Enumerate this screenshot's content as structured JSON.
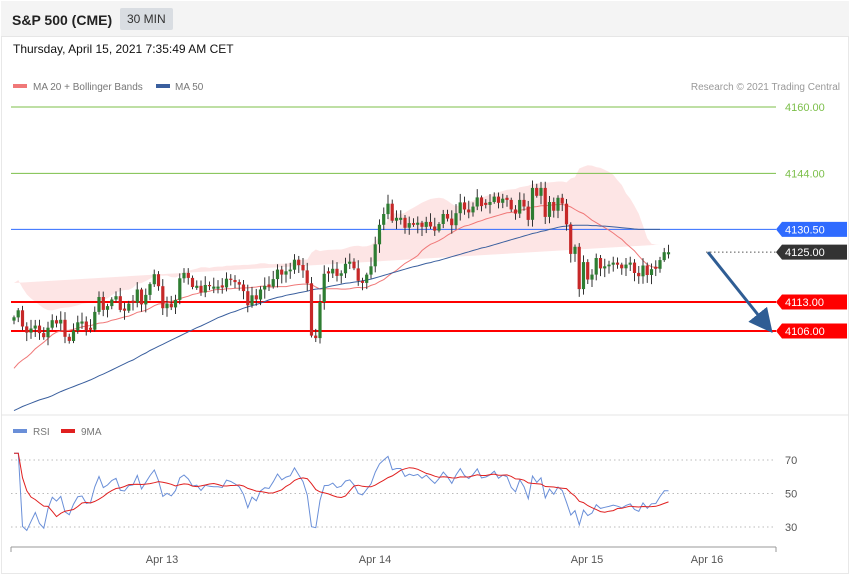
{
  "header": {
    "title": "S&P 500 (CME)",
    "timeframe": "30 MIN",
    "timestamp": "Thursday, April 15, 2021 7:35:49 AM CET"
  },
  "legend": {
    "ma20_label": "MA 20 + Bollinger Bands",
    "ma50_label": "MA 50",
    "credit": "Research © 2021 Trading Central",
    "rsi_label": "RSI",
    "ma9_label": "9MA"
  },
  "colors": {
    "up_candle": "#2e7d32",
    "down_candle": "#c62828",
    "bollinger_fill": "#fde0e0",
    "ma20": "#f07878",
    "ma50": "#3a5f9e",
    "green_level": "#7cbf4a",
    "support": "#ff0000",
    "current": "#333333",
    "pivot": "#2f6bff",
    "forecast_arrow": "#2f5d94",
    "rsi": "#6a8fd8",
    "rsi_ma": "#e02020"
  },
  "chart_data": [
    {
      "type": "candlestick",
      "title": "S&P 500 (CME)",
      "ylim": [
        4085,
        4164
      ],
      "x_ticks": [
        "Apr 13",
        "Apr 14",
        "Apr 15",
        "Apr 16"
      ],
      "levels": [
        {
          "value": 4160.0,
          "label": "4160.00",
          "kind": "resistance-2"
        },
        {
          "value": 4144.0,
          "label": "4144.00",
          "kind": "resistance-1"
        },
        {
          "value": 4130.5,
          "label": "4130.50",
          "kind": "pivot"
        },
        {
          "value": 4125.0,
          "label": "4125.00",
          "kind": "last-price"
        },
        {
          "value": 4113.0,
          "label": "4113.00",
          "kind": "support-1"
        },
        {
          "value": 4106.0,
          "label": "4106.00",
          "kind": "support-2"
        }
      ],
      "forecast_arrow": {
        "from": 4125.0,
        "to": 4106.0
      },
      "close": [
        4109.3,
        4111.0,
        4107.1,
        4105.6,
        4106.6,
        4107.3,
        4105.5,
        4104.5,
        4106.8,
        4108.6,
        4107.8,
        4108.7,
        4104.6,
        4103.6,
        4106.1,
        4108.1,
        4108.3,
        4106.1,
        4106.3,
        4110.6,
        4114.2,
        4111.1,
        4112.0,
        4113.6,
        4114.4,
        4111.1,
        4110.9,
        4112.6,
        4112.8,
        4116.0,
        4112.4,
        4114.7,
        4117.3,
        4119.7,
        4116.8,
        4111.5,
        4112.6,
        4111.7,
        4113.5,
        4118.7,
        4120.0,
        4118.8,
        4116.6,
        4116.9,
        4115.3,
        4117.1,
        4116.8,
        4116.7,
        4116.7,
        4116.5,
        4118.6,
        4118.3,
        4117.8,
        4117.2,
        4115.6,
        4112.2,
        4114.6,
        4113.6,
        4116.0,
        4116.9,
        4116.7,
        4118.5,
        4120.8,
        4119.6,
        4120.4,
        4120.8,
        4123.2,
        4121.9,
        4120.6,
        4117.5,
        4104.9,
        4104.3,
        4113.0,
        4119.8,
        4119.9,
        4121.0,
        4119.3,
        4119.9,
        4122.2,
        4122.7,
        4121.1,
        4118.1,
        4117.6,
        4119.6,
        4121.6,
        4126.9,
        4131.6,
        4134.2,
        4136.7,
        4132.6,
        4133.3,
        4133.3,
        4130.9,
        4132.0,
        4131.6,
        4132.1,
        4131.1,
        4132.3,
        4131.2,
        4130.2,
        4131.8,
        4134.2,
        4133.1,
        4131.5,
        4134.4,
        4137.0,
        4135.3,
        4134.6,
        4136.0,
        4138.2,
        4136.1,
        4136.4,
        4137.1,
        4138.4,
        4136.9,
        4137.9,
        4137.6,
        4135.3,
        4134.3,
        4137.6,
        4136.0,
        4132.8,
        4140.5,
        4138.6,
        4140.5,
        4133.5,
        4137.1,
        4135.0,
        4138.1,
        4136.7,
        4131.7,
        4124.6,
        4126.3,
        4116.1,
        4122.6,
        4118.4,
        4119.6,
        4123.6,
        4121.1,
        4121.6,
        4122.0,
        4122.5,
        4122.0,
        4121.1,
        4122.0,
        4122.5,
        4120.0,
        4119.2,
        4121.8,
        4119.5,
        4120.9,
        4121.0,
        4123.1,
        4125.0,
        4125.0
      ],
      "ma20": [
        4097.0,
        4098.2,
        4099.0,
        4099.7,
        4100.6,
        4101.7,
        4102.5,
        4103.3,
        4104.2,
        4105.1,
        4105.7,
        4106.0,
        4106.1,
        4106.2,
        4106.4,
        4106.7,
        4107.0,
        4107.2,
        4107.3,
        4107.6,
        4107.9,
        4108.0,
        4108.2,
        4108.6,
        4108.8,
        4109.1,
        4109.4,
        4109.6,
        4110.0,
        4110.5,
        4110.7,
        4111.0,
        4111.5,
        4112.1,
        4112.5,
        4112.6,
        4112.9,
        4113.1,
        4113.4,
        4113.8,
        4114.1,
        4114.4,
        4114.8,
        4115.0,
        4115.3,
        4115.5,
        4115.6,
        4115.9,
        4116.0,
        4116.0,
        4116.2,
        4116.2,
        4116.3,
        4116.3,
        4116.4,
        4116.4,
        4116.5,
        4116.6,
        4116.8,
        4116.8,
        4116.6,
        4116.6,
        4116.7,
        4116.7,
        4116.7,
        4116.9,
        4117.1,
        4117.2,
        4117.3,
        4117.3,
        4117.2,
        4116.6,
        4116.1,
        4116.2,
        4116.2,
        4116.2,
        4116.2,
        4116.1,
        4116.1,
        4116.2,
        4116.4,
        4116.5,
        4116.4,
        4116.5,
        4117.0,
        4117.3,
        4117.9,
        4118.4,
        4119.2,
        4120.0,
        4120.6,
        4121.5,
        4122.3,
        4122.9,
        4123.5,
        4124.2,
        4125.4,
        4126.2,
        4126.9,
        4127.3,
        4127.8,
        4128.4,
        4129.1,
        4129.7,
        4130.3,
        4130.8,
        4131.3,
        4131.5,
        4131.9,
        4132.3,
        4132.6,
        4133.0,
        4133.3,
        4133.6,
        4133.9,
        4134.2,
        4134.5,
        4134.6,
        4134.7,
        4135.1,
        4135.3,
        4135.5,
        4135.9,
        4136.0,
        4136.2,
        4136.2,
        4136.3,
        4136.4,
        4136.5,
        4136.5,
        4136.3,
        4135.9,
        4135.3,
        4134.7,
        4134.3,
        4133.5,
        4132.7,
        4132.1,
        4131.5,
        4130.9,
        4130.3,
        4129.6,
        4128.8,
        4128.1,
        4127.1,
        4126.2,
        4125.3,
        4124.1,
        4123.0,
        4122.0,
        4121.5,
        4121.3,
        4121.3
      ],
      "ma50": [
        4086.8,
        4087.3,
        4087.8,
        4088.2,
        4088.6,
        4089.0,
        4089.4,
        4089.7,
        4090.0,
        4090.4,
        4090.9,
        4091.4,
        4091.8,
        4092.2,
        4092.6,
        4093.0,
        4093.4,
        4093.8,
        4094.2,
        4094.7,
        4095.2,
        4095.6,
        4096.1,
        4096.6,
        4097.1,
        4097.6,
        4098.1,
        4098.6,
        4099.0,
        4099.6,
        4100.2,
        4100.7,
        4101.3,
        4101.8,
        4102.3,
        4102.8,
        4103.3,
        4103.8,
        4104.3,
        4104.8,
        4105.3,
        4105.8,
        4106.3,
        4106.8,
        4107.2,
        4107.7,
        4108.2,
        4108.7,
        4109.2,
        4109.6,
        4110.0,
        4110.4,
        4110.7,
        4111.1,
        4111.5,
        4111.8,
        4112.1,
        4112.4,
        4112.7,
        4113.1,
        4113.5,
        4113.8,
        4114.1,
        4114.3,
        4114.6,
        4114.8,
        4115.0,
        4115.2,
        4115.4,
        4115.6,
        4115.9,
        4116.1,
        4116.2,
        4116.4,
        4116.7,
        4116.9,
        4117.1,
        4117.3,
        4117.5,
        4117.6,
        4117.8,
        4117.9,
        4118.1,
        4118.3,
        4118.5,
        4118.8,
        4119.1,
        4119.4,
        4119.7,
        4120.0,
        4120.3,
        4120.6,
        4120.9,
        4121.2,
        4121.5,
        4121.7,
        4122.0,
        4122.3,
        4122.5,
        4122.8,
        4123.0,
        4123.3,
        4123.6,
        4123.9,
        4124.2,
        4124.5,
        4124.8,
        4125.1,
        4125.4,
        4125.7,
        4126.0,
        4126.2,
        4126.5,
        4126.8,
        4127.1,
        4127.4,
        4127.7,
        4128.0,
        4128.3,
        4128.6,
        4128.9,
        4129.2,
        4129.5,
        4129.7,
        4130.0,
        4130.2,
        4130.5,
        4130.7,
        4131.0,
        4131.2,
        4131.3,
        4131.4,
        4131.5,
        4131.5,
        4131.5,
        4131.5,
        4131.4,
        4131.4,
        4131.3,
        4131.3,
        4131.2,
        4131.1,
        4131.0,
        4130.9,
        4130.8,
        4130.7,
        4130.6,
        4130.5,
        4130.5,
        4130.5,
        4130.5,
        4130.5,
        4130.5
      ]
    },
    {
      "type": "line",
      "title": "RSI",
      "ylim": [
        20,
        80
      ],
      "y_ticks": [
        70,
        50,
        30
      ],
      "series_names": [
        "RSI",
        "9MA"
      ]
    }
  ]
}
